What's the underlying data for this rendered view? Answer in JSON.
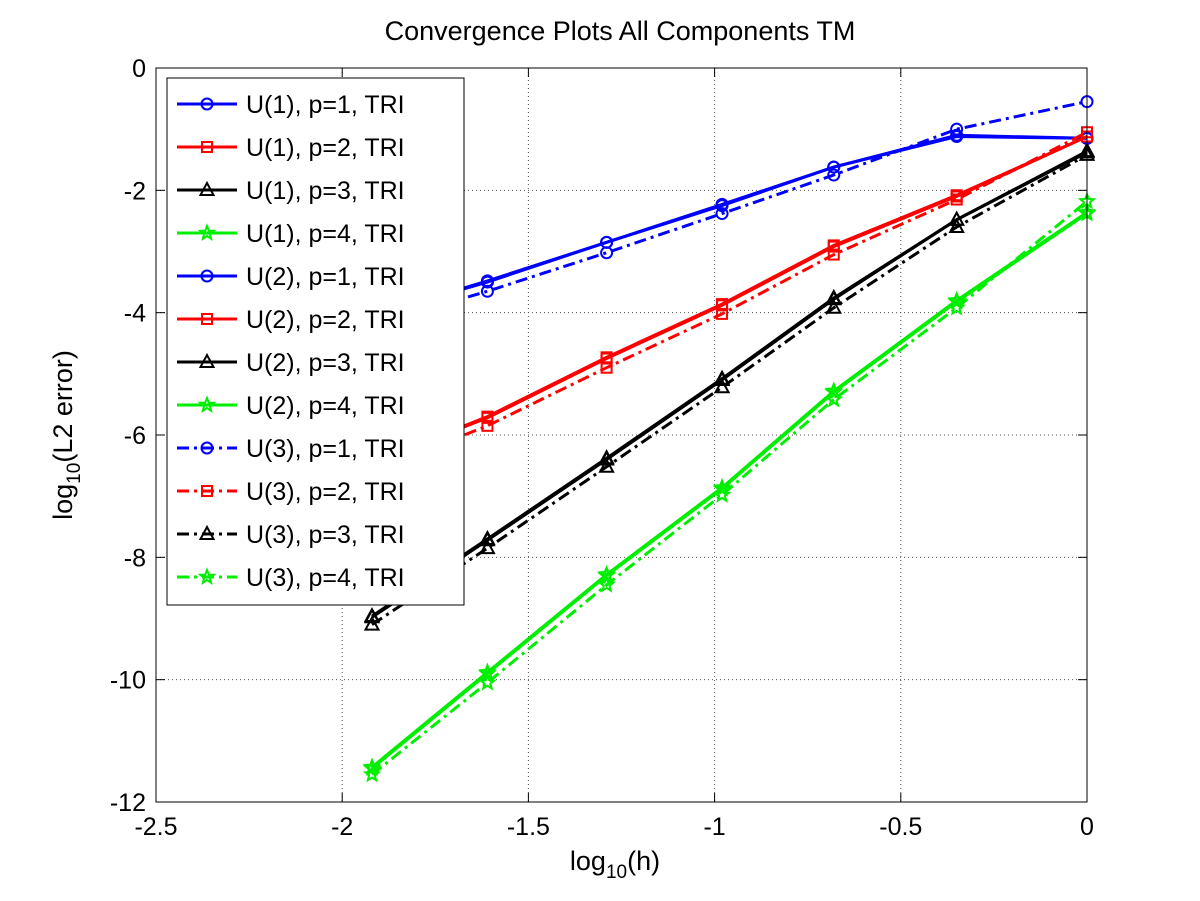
{
  "chart_data": {
    "type": "line",
    "title": "Convergence Plots All Components TM",
    "xlabel": {
      "base": "log",
      "sub": "10",
      "rest": "(h)"
    },
    "ylabel": {
      "base": "log",
      "sub": "10",
      "rest": "(L2 error)"
    },
    "xlim": [
      -2.5,
      0
    ],
    "ylim": [
      -12,
      0
    ],
    "xticks": [
      -2.5,
      -2,
      -1.5,
      -1,
      -0.5,
      0
    ],
    "xticklabels": [
      "-2.5",
      "-2",
      "-1.5",
      "-1",
      "-0.5",
      "0"
    ],
    "yticks": [
      -12,
      -10,
      -8,
      -6,
      -4,
      -2,
      0
    ],
    "yticklabels": [
      "-12",
      "-10",
      "-8",
      "-6",
      "-4",
      "-2",
      "0"
    ],
    "grid": true,
    "legend_position": "top-left",
    "colors": {
      "blue": "#0000ff",
      "red": "#ff0000",
      "black": "#000000",
      "green": "#00ee00"
    },
    "x": [
      -1.92,
      -1.61,
      -1.29,
      -0.98,
      -0.68,
      -0.35,
      0
    ],
    "series": [
      {
        "name": "U(1), p=1, TRI",
        "color": "blue",
        "dash": "solid",
        "marker": "circle",
        "y": [
          -4.05,
          -3.5,
          -2.85,
          -2.25,
          -1.62,
          -1.12,
          -1.15
        ]
      },
      {
        "name": "U(1), p=2, TRI",
        "color": "red",
        "dash": "solid",
        "marker": "square",
        "y": [
          -6.45,
          -5.72,
          -4.75,
          -3.88,
          -2.92,
          -2.1,
          -1.12
        ]
      },
      {
        "name": "U(1), p=3, TRI",
        "color": "black",
        "dash": "solid",
        "marker": "triangle",
        "y": [
          -8.98,
          -7.72,
          -6.4,
          -5.1,
          -3.78,
          -2.48,
          -1.38
        ]
      },
      {
        "name": "U(1), p=4, TRI",
        "color": "green",
        "dash": "solid",
        "marker": "star",
        "y": [
          -11.45,
          -9.9,
          -8.3,
          -6.88,
          -5.3,
          -3.82,
          -2.38
        ]
      },
      {
        "name": "U(2), p=1, TRI",
        "color": "blue",
        "dash": "solid",
        "marker": "circle",
        "y": [
          -4.05,
          -3.48,
          -2.85,
          -2.23,
          -1.62,
          -1.1,
          -1.15
        ]
      },
      {
        "name": "U(2), p=2, TRI",
        "color": "red",
        "dash": "solid",
        "marker": "square",
        "y": [
          -6.45,
          -5.7,
          -4.73,
          -3.86,
          -2.9,
          -2.08,
          -1.12
        ]
      },
      {
        "name": "U(2), p=3, TRI",
        "color": "black",
        "dash": "solid",
        "marker": "triangle",
        "y": [
          -8.96,
          -7.7,
          -6.38,
          -5.08,
          -3.76,
          -2.48,
          -1.36
        ]
      },
      {
        "name": "U(2), p=4, TRI",
        "color": "green",
        "dash": "solid",
        "marker": "star",
        "y": [
          -11.43,
          -9.88,
          -8.28,
          -6.86,
          -5.28,
          -3.8,
          -2.36
        ]
      },
      {
        "name": "U(3), p=1, TRI",
        "color": "blue",
        "dash": "dashdot",
        "marker": "circle",
        "y": [
          -4.2,
          -3.65,
          -3.02,
          -2.38,
          -1.75,
          -1.0,
          -0.55
        ]
      },
      {
        "name": "U(3), p=2, TRI",
        "color": "red",
        "dash": "dashdot",
        "marker": "square",
        "y": [
          -6.6,
          -5.85,
          -4.9,
          -4.02,
          -3.05,
          -2.15,
          -1.05
        ]
      },
      {
        "name": "U(3), p=3, TRI",
        "color": "black",
        "dash": "dashdot",
        "marker": "triangle",
        "y": [
          -9.1,
          -7.85,
          -6.52,
          -5.22,
          -3.92,
          -2.6,
          -1.42
        ]
      },
      {
        "name": "U(3), p=4, TRI",
        "color": "green",
        "dash": "dashdot",
        "marker": "star",
        "y": [
          -11.55,
          -10.05,
          -8.45,
          -6.98,
          -5.42,
          -3.92,
          -2.18
        ]
      }
    ]
  }
}
